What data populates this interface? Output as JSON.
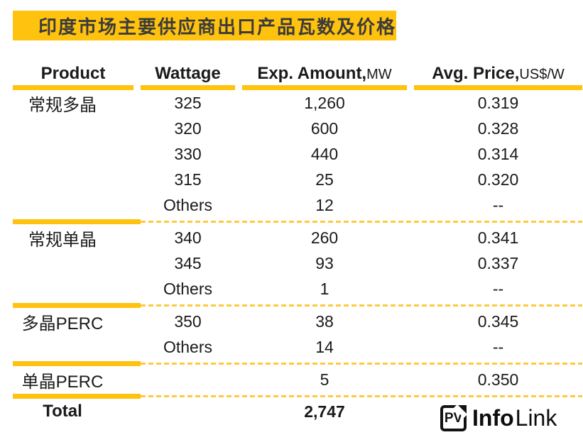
{
  "title": "印度市场主要供应商出口产品瓦数及价格",
  "colors": {
    "accent_yellow": "#FFC20E",
    "dashed_yellow": "#FFC93C",
    "text": "#1a1a1a",
    "title_text": "#3b3b3b",
    "background": "#ffffff"
  },
  "table": {
    "headers": [
      {
        "label": "Product",
        "unit": ""
      },
      {
        "label": "Wattage",
        "unit": ""
      },
      {
        "label": "Exp. Amount,",
        "unit": "MW"
      },
      {
        "label": "Avg. Price,",
        "unit": "US$/W"
      }
    ],
    "groups": [
      {
        "product": "常规多晶",
        "rows": [
          {
            "wattage": "325",
            "amount": "1,260",
            "price": "0.319"
          },
          {
            "wattage": "320",
            "amount": "600",
            "price": "0.328"
          },
          {
            "wattage": "330",
            "amount": "440",
            "price": "0.314"
          },
          {
            "wattage": "315",
            "amount": "25",
            "price": "0.320"
          },
          {
            "wattage": "Others",
            "amount": "12",
            "price": "--"
          }
        ]
      },
      {
        "product": "常规单晶",
        "rows": [
          {
            "wattage": "340",
            "amount": "260",
            "price": "0.341"
          },
          {
            "wattage": "345",
            "amount": "93",
            "price": "0.337"
          },
          {
            "wattage": "Others",
            "amount": "1",
            "price": "--"
          }
        ]
      },
      {
        "product": "多晶PERC",
        "rows": [
          {
            "wattage": "350",
            "amount": "38",
            "price": "0.345"
          },
          {
            "wattage": "Others",
            "amount": "14",
            "price": "--"
          }
        ]
      },
      {
        "product": "单晶PERC",
        "rows": [
          {
            "wattage": "",
            "amount": "5",
            "price": "0.350"
          }
        ]
      }
    ],
    "total": {
      "label": "Total",
      "amount": "2,747"
    }
  },
  "logo": {
    "mark": "PV",
    "name_bold": "Info",
    "name_light": "Link"
  },
  "chart_data": {
    "type": "table",
    "title": "印度市场主要供应商出口产品瓦数及价格",
    "columns": [
      "Product",
      "Wattage",
      "Exp. Amount,MW",
      "Avg. Price,US$/W"
    ],
    "rows": [
      [
        "常规多晶",
        "325",
        1260,
        0.319
      ],
      [
        "常规多晶",
        "320",
        600,
        0.328
      ],
      [
        "常规多晶",
        "330",
        440,
        0.314
      ],
      [
        "常规多晶",
        "315",
        25,
        0.32
      ],
      [
        "常规多晶",
        "Others",
        12,
        null
      ],
      [
        "常规单晶",
        "340",
        260,
        0.341
      ],
      [
        "常规单晶",
        "345",
        93,
        0.337
      ],
      [
        "常规单晶",
        "Others",
        1,
        null
      ],
      [
        "多晶PERC",
        "350",
        38,
        0.345
      ],
      [
        "多晶PERC",
        "Others",
        14,
        null
      ],
      [
        "单晶PERC",
        "",
        5,
        0.35
      ],
      [
        "Total",
        "",
        2747,
        null
      ]
    ]
  }
}
